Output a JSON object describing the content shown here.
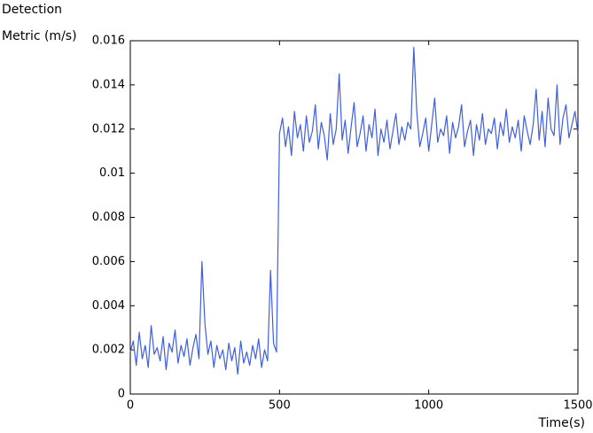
{
  "chart_data": {
    "type": "line",
    "ylabel": "Detection Metric (m/s)",
    "xlabel": "Time(s)",
    "x": [
      0,
      10,
      20,
      30,
      40,
      50,
      60,
      70,
      80,
      90,
      100,
      110,
      120,
      130,
      140,
      150,
      160,
      170,
      180,
      190,
      200,
      210,
      220,
      230,
      240,
      250,
      260,
      270,
      280,
      290,
      300,
      310,
      320,
      330,
      340,
      350,
      360,
      370,
      380,
      390,
      400,
      410,
      420,
      430,
      440,
      450,
      460,
      470,
      480,
      490,
      500,
      510,
      520,
      530,
      540,
      550,
      560,
      570,
      580,
      590,
      600,
      610,
      620,
      630,
      640,
      650,
      660,
      670,
      680,
      690,
      700,
      710,
      720,
      730,
      740,
      750,
      760,
      770,
      780,
      790,
      800,
      810,
      820,
      830,
      840,
      850,
      860,
      870,
      880,
      890,
      900,
      910,
      920,
      930,
      940,
      950,
      960,
      970,
      980,
      990,
      1000,
      1010,
      1020,
      1030,
      1040,
      1050,
      1060,
      1070,
      1080,
      1090,
      1100,
      1110,
      1120,
      1130,
      1140,
      1150,
      1160,
      1170,
      1180,
      1190,
      1200,
      1210,
      1220,
      1230,
      1240,
      1250,
      1260,
      1270,
      1280,
      1290,
      1300,
      1310,
      1320,
      1330,
      1340,
      1350,
      1360,
      1370,
      1380,
      1390,
      1400,
      1410,
      1420,
      1430,
      1440,
      1450,
      1460,
      1470,
      1480,
      1490,
      1500
    ],
    "series": [
      {
        "color": "#3f5ee0",
        "values": [
          0.0019,
          0.0024,
          0.0013,
          0.0028,
          0.0016,
          0.0022,
          0.0012,
          0.0031,
          0.0018,
          0.0021,
          0.0015,
          0.0026,
          0.0011,
          0.0023,
          0.0019,
          0.0029,
          0.0014,
          0.0022,
          0.0017,
          0.0025,
          0.0013,
          0.0021,
          0.0027,
          0.0016,
          0.006,
          0.0032,
          0.0018,
          0.0024,
          0.0012,
          0.0022,
          0.0016,
          0.002,
          0.0011,
          0.0023,
          0.0015,
          0.0021,
          0.0009,
          0.0024,
          0.0014,
          0.0019,
          0.0013,
          0.0022,
          0.0016,
          0.0025,
          0.0012,
          0.002,
          0.0015,
          0.0056,
          0.0023,
          0.0019,
          0.0118,
          0.0125,
          0.0112,
          0.0121,
          0.0108,
          0.0128,
          0.0116,
          0.0122,
          0.011,
          0.0126,
          0.0114,
          0.0119,
          0.0131,
          0.0111,
          0.0123,
          0.0117,
          0.0106,
          0.0127,
          0.0113,
          0.012,
          0.0145,
          0.0115,
          0.0124,
          0.0109,
          0.0121,
          0.0132,
          0.0112,
          0.0118,
          0.0126,
          0.011,
          0.0122,
          0.0116,
          0.0129,
          0.0108,
          0.012,
          0.0114,
          0.0124,
          0.0111,
          0.0119,
          0.0127,
          0.0113,
          0.0121,
          0.0115,
          0.0123,
          0.012,
          0.0157,
          0.0128,
          0.0112,
          0.0118,
          0.0125,
          0.011,
          0.0122,
          0.0134,
          0.0114,
          0.012,
          0.0117,
          0.0126,
          0.0109,
          0.0123,
          0.0116,
          0.0121,
          0.0131,
          0.0112,
          0.0119,
          0.0124,
          0.0108,
          0.0122,
          0.0115,
          0.0127,
          0.0113,
          0.012,
          0.0118,
          0.0125,
          0.0111,
          0.0123,
          0.0117,
          0.0129,
          0.0114,
          0.0121,
          0.0116,
          0.0124,
          0.011,
          0.0126,
          0.0119,
          0.0113,
          0.0122,
          0.0138,
          0.0115,
          0.0128,
          0.0112,
          0.0134,
          0.012,
          0.0117,
          0.014,
          0.0113,
          0.0125,
          0.0131,
          0.0116,
          0.0122,
          0.0128,
          0.0118
        ]
      }
    ],
    "xlim": [
      0,
      1500
    ],
    "xticks": [
      0,
      500,
      1000,
      1500
    ],
    "ylim": [
      0,
      0.016
    ],
    "yticks": [
      0,
      0.002,
      0.004,
      0.006,
      0.008,
      0.01,
      0.012,
      0.014,
      0.016
    ],
    "grid": false
  }
}
